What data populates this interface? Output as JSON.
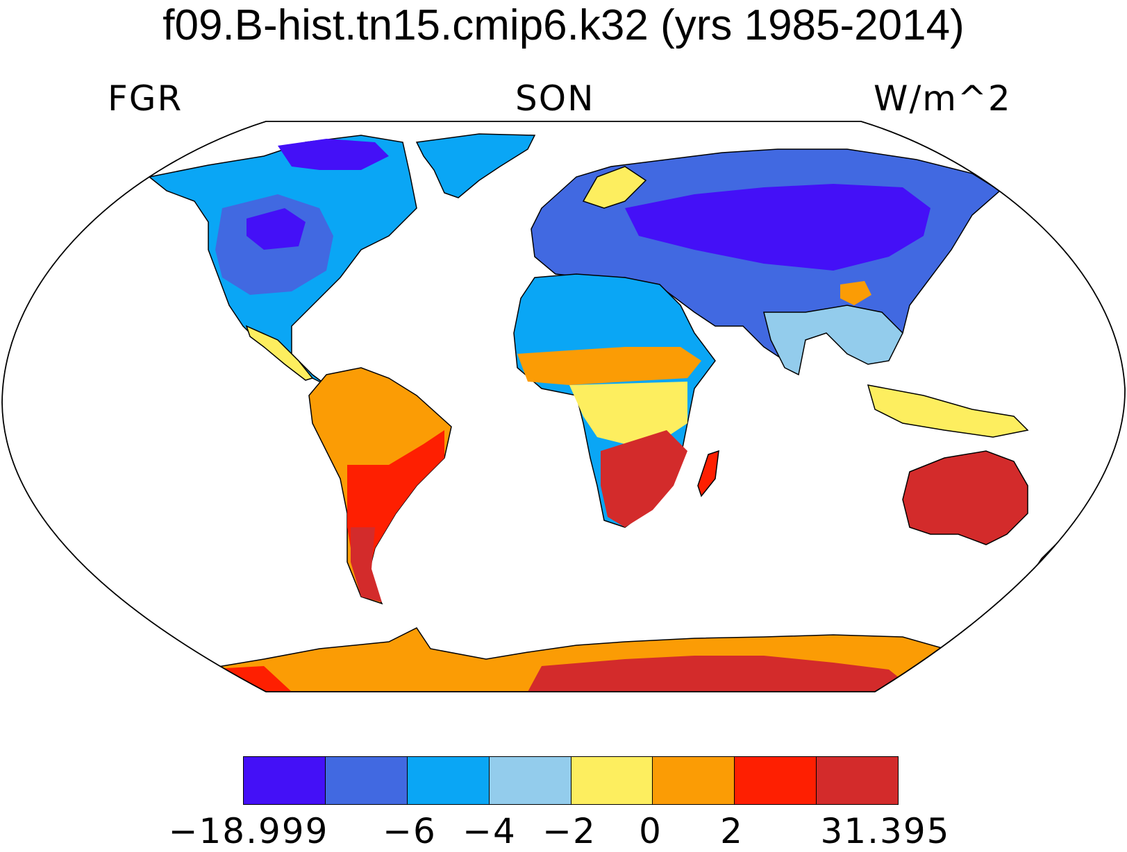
{
  "title": "f09.B-hist.tn15.cmip6.k32 (yrs 1985-2014)",
  "variable": "FGR",
  "season": "SON",
  "units": "W/m^2",
  "colorbar": {
    "colors": [
      "#4410f7",
      "#4169e1",
      "#0aa6f5",
      "#93ccec",
      "#fdee5f",
      "#fb9c05",
      "#fe1f01",
      "#d32b2b"
    ],
    "labels": [
      "−18.999",
      "−6",
      "−4",
      "−2",
      "0",
      "2",
      "31.395"
    ]
  },
  "chart_data": {
    "type": "heatmap",
    "title": "f09.B-hist.tn15.cmip6.k32 (yrs 1985-2014)",
    "variable": "FGR",
    "season": "SON",
    "units": "W/m^2",
    "projection": "Robinson",
    "levels": [
      -18.999,
      -6,
      -4,
      -2,
      0,
      2,
      31.395
    ],
    "colormap": [
      "#4410f7",
      "#4169e1",
      "#0aa6f5",
      "#93ccec",
      "#fdee5f",
      "#fb9c05",
      "#fe1f01",
      "#d32b2b"
    ]
  }
}
